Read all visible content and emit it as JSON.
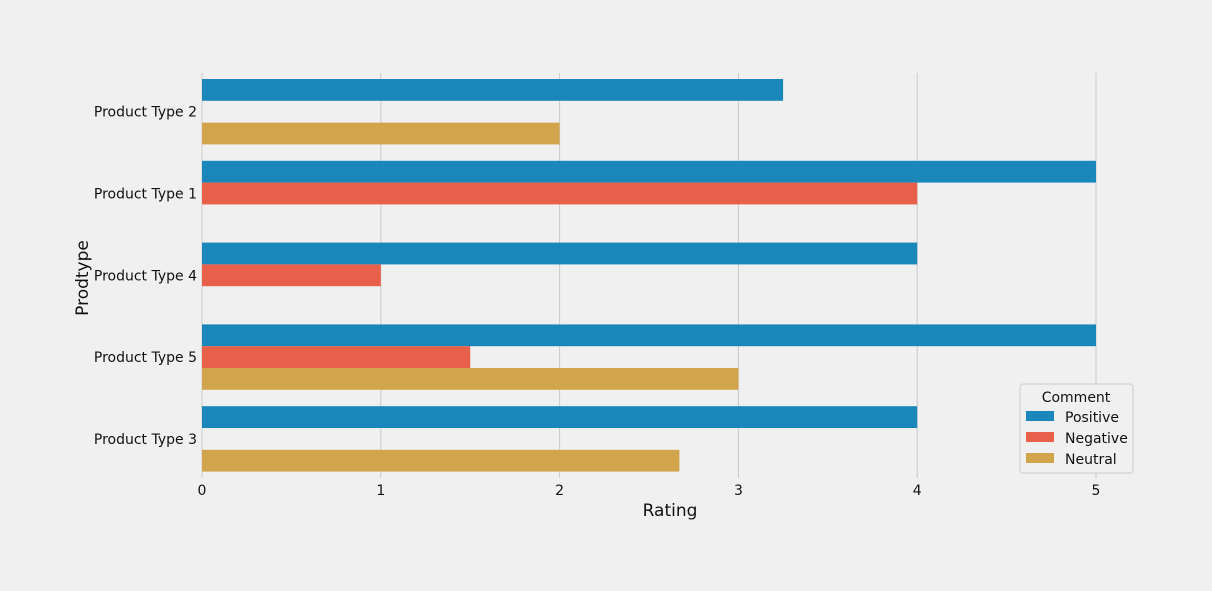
{
  "chart_data": {
    "type": "bar",
    "orientation": "horizontal",
    "categories": [
      "Product Type 2",
      "Product Type 1",
      "Product Type 4",
      "Product Type 5",
      "Product Type 3"
    ],
    "series": [
      {
        "name": "Positive",
        "values": [
          3.25,
          5,
          4,
          5,
          4
        ],
        "color": "#1a87bb"
      },
      {
        "name": "Negative",
        "values": [
          null,
          4,
          1,
          1.5,
          null
        ],
        "color": "#e8604a"
      },
      {
        "name": "Neutral",
        "values": [
          2,
          null,
          null,
          3,
          2.67
        ],
        "color": "#d2a54d"
      }
    ],
    "xlabel": "Rating",
    "ylabel": "Prodtype",
    "xlim": [
      0,
      5.2
    ],
    "xticks": [
      "0",
      "1",
      "2",
      "3",
      "4",
      "5"
    ],
    "grid": "vertical",
    "legend": {
      "title": "Comment",
      "position": "bottom-right"
    }
  }
}
